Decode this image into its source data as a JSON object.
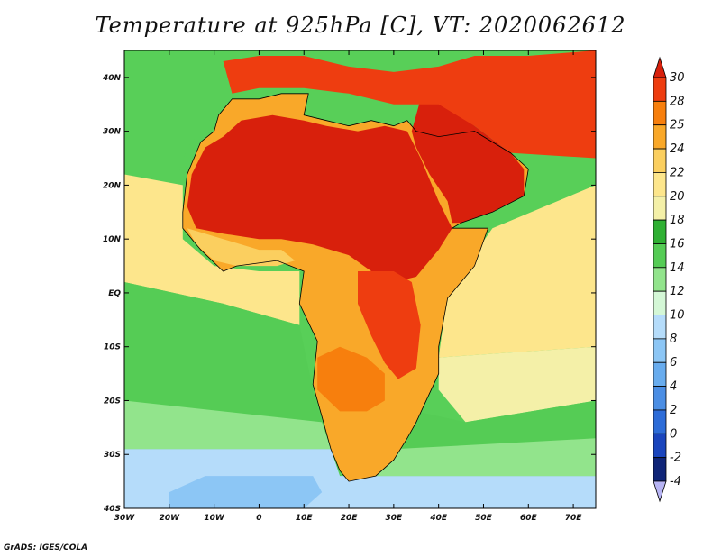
{
  "title": "Temperature at 925hPa [C], VT: 2020062612",
  "credit": "GrADS: IGES/COLA",
  "map": {
    "lon_range": [
      -30,
      75
    ],
    "lat_range": [
      -40,
      45
    ],
    "lon_ticks": [
      {
        "value": -30,
        "label": "30W"
      },
      {
        "value": -20,
        "label": "20W"
      },
      {
        "value": -10,
        "label": "10W"
      },
      {
        "value": 0,
        "label": "0"
      },
      {
        "value": 10,
        "label": "10E"
      },
      {
        "value": 20,
        "label": "20E"
      },
      {
        "value": 30,
        "label": "30E"
      },
      {
        "value": 40,
        "label": "40E"
      },
      {
        "value": 50,
        "label": "50E"
      },
      {
        "value": 60,
        "label": "60E"
      },
      {
        "value": 70,
        "label": "70E"
      }
    ],
    "lat_ticks": [
      {
        "value": 40,
        "label": "40N"
      },
      {
        "value": 30,
        "label": "30N"
      },
      {
        "value": 20,
        "label": "20N"
      },
      {
        "value": 10,
        "label": "10N"
      },
      {
        "value": 0,
        "label": "EQ"
      },
      {
        "value": -10,
        "label": "10S"
      },
      {
        "value": -20,
        "label": "20S"
      },
      {
        "value": -30,
        "label": "30S"
      },
      {
        "value": -40,
        "label": "40S"
      }
    ]
  },
  "colorbar": {
    "levels": [
      "30",
      "28",
      "25",
      "24",
      "22",
      "20",
      "18",
      "16",
      "14",
      "12",
      "10",
      "8",
      "6",
      "4",
      "2",
      "0",
      "-2",
      "-4"
    ],
    "colors": [
      "#d8200c",
      "#ee3d10",
      "#f77f0d",
      "#f9a829",
      "#fbcf5f",
      "#fde68c",
      "#f4f0a8",
      "#2fb033",
      "#55cc55",
      "#92e48c",
      "#d4f7d6",
      "#b5dcfa",
      "#8cc6f5",
      "#68acee",
      "#4b8ee4",
      "#2d6cd8",
      "#1a45bd",
      "#0f2578",
      "#b7b4f4"
    ]
  },
  "regions": [
    {
      "name": "north-atlantic",
      "color": "#58cf58",
      "poly": [
        [
          -30,
          45
        ],
        [
          -6,
          45
        ],
        [
          -6,
          36
        ],
        [
          -10,
          33
        ],
        [
          -16,
          27
        ],
        [
          -18,
          22
        ],
        [
          -30,
          22
        ]
      ]
    },
    {
      "name": "south-atlantic-warm",
      "color": "#fde68c",
      "poly": [
        [
          -30,
          22
        ],
        [
          -17,
          20
        ],
        [
          -17,
          10
        ],
        [
          -10,
          5
        ],
        [
          0,
          4
        ],
        [
          9,
          4
        ],
        [
          9,
          -6
        ],
        [
          -8,
          -2
        ],
        [
          -30,
          2
        ]
      ]
    },
    {
      "name": "south-atlantic-mid",
      "color": "#55cc55",
      "poly": [
        [
          -30,
          2
        ],
        [
          -8,
          -2
        ],
        [
          9,
          -6
        ],
        [
          12,
          -18
        ],
        [
          14,
          -24
        ],
        [
          -30,
          -20
        ]
      ]
    },
    {
      "name": "south-atlantic-cool",
      "color": "#92e48c",
      "poly": [
        [
          -30,
          -20
        ],
        [
          14,
          -24
        ],
        [
          16,
          -29
        ],
        [
          -30,
          -29
        ]
      ]
    },
    {
      "name": "south-atlantic-cold",
      "color": "#b5dcfa",
      "poly": [
        [
          -30,
          -29
        ],
        [
          16,
          -29
        ],
        [
          18,
          -34
        ],
        [
          75,
          -34
        ],
        [
          75,
          -40
        ],
        [
          -30,
          -40
        ]
      ]
    },
    {
      "name": "south-atlantic-colder",
      "color": "#8cc6f5",
      "poly": [
        [
          -12,
          -34
        ],
        [
          12,
          -34
        ],
        [
          14,
          -37
        ],
        [
          10,
          -40
        ],
        [
          -20,
          -40
        ],
        [
          -20,
          -37
        ]
      ]
    },
    {
      "name": "indian-ocean-warm",
      "color": "#fde68c",
      "poly": [
        [
          52,
          12
        ],
        [
          75,
          20
        ],
        [
          75,
          -10
        ],
        [
          40,
          -12
        ],
        [
          42,
          0
        ]
      ]
    },
    {
      "name": "indian-ocean-mid",
      "color": "#f4f0a8",
      "poly": [
        [
          40,
          -12
        ],
        [
          75,
          -10
        ],
        [
          75,
          -20
        ],
        [
          46,
          -24
        ],
        [
          40,
          -18
        ]
      ]
    },
    {
      "name": "indian-ocean-green",
      "color": "#55cc55",
      "poly": [
        [
          35,
          -22
        ],
        [
          46,
          -24
        ],
        [
          75,
          -20
        ],
        [
          75,
          -27
        ],
        [
          32,
          -29
        ]
      ]
    },
    {
      "name": "indian-ocean-cool",
      "color": "#92e48c",
      "poly": [
        [
          30,
          -29
        ],
        [
          75,
          -27
        ],
        [
          75,
          -34
        ],
        [
          24,
          -34
        ]
      ]
    },
    {
      "name": "africa-land",
      "color": "#f9a829",
      "poly": [
        [
          -17,
          15
        ],
        [
          -16,
          22
        ],
        [
          -13,
          28
        ],
        [
          -10,
          30
        ],
        [
          -9,
          33
        ],
        [
          -6,
          36
        ],
        [
          0,
          36
        ],
        [
          5,
          37
        ],
        [
          11,
          37
        ],
        [
          10,
          33
        ],
        [
          15,
          32
        ],
        [
          20,
          31
        ],
        [
          25,
          32
        ],
        [
          30,
          31
        ],
        [
          33,
          32
        ],
        [
          35,
          30
        ],
        [
          40,
          29
        ],
        [
          48,
          30
        ],
        [
          56,
          26
        ],
        [
          60,
          23
        ],
        [
          59,
          18
        ],
        [
          52,
          15
        ],
        [
          45,
          13
        ],
        [
          43,
          12
        ],
        [
          51,
          12
        ],
        [
          48,
          5
        ],
        [
          42,
          -1
        ],
        [
          40,
          -10
        ],
        [
          40,
          -15
        ],
        [
          35,
          -24
        ],
        [
          33,
          -27
        ],
        [
          30,
          -31
        ],
        [
          26,
          -34
        ],
        [
          20,
          -35
        ],
        [
          18,
          -33
        ],
        [
          16,
          -29
        ],
        [
          14,
          -23
        ],
        [
          12,
          -17
        ],
        [
          13,
          -9
        ],
        [
          9,
          -2
        ],
        [
          10,
          4
        ],
        [
          4,
          6
        ],
        [
          -5,
          5
        ],
        [
          -8,
          4
        ],
        [
          -13,
          8
        ],
        [
          -17,
          12
        ]
      ]
    },
    {
      "name": "arabia-land",
      "color": "#d8200c",
      "poly": [
        [
          34,
          30
        ],
        [
          36,
          36
        ],
        [
          40,
          37
        ],
        [
          48,
          31
        ],
        [
          56,
          26
        ],
        [
          59,
          23
        ],
        [
          59,
          18
        ],
        [
          52,
          15
        ],
        [
          45,
          13
        ],
        [
          43,
          13
        ],
        [
          42,
          17
        ],
        [
          38,
          22
        ],
        [
          35,
          27
        ]
      ]
    },
    {
      "name": "sahara-hot",
      "color": "#d8200c",
      "poly": [
        [
          -16,
          16
        ],
        [
          -15,
          22
        ],
        [
          -12,
          27
        ],
        [
          -8,
          29
        ],
        [
          -4,
          32
        ],
        [
          3,
          33
        ],
        [
          10,
          32
        ],
        [
          15,
          31
        ],
        [
          22,
          30
        ],
        [
          28,
          31
        ],
        [
          33,
          30
        ],
        [
          36,
          25
        ],
        [
          40,
          17
        ],
        [
          43,
          12
        ],
        [
          40,
          8
        ],
        [
          35,
          3
        ],
        [
          30,
          2
        ],
        [
          25,
          4
        ],
        [
          20,
          7
        ],
        [
          12,
          9
        ],
        [
          5,
          10
        ],
        [
          0,
          10
        ],
        [
          -8,
          11
        ],
        [
          -14,
          12
        ]
      ]
    },
    {
      "name": "med-north-hot",
      "color": "#ee3d10",
      "poly": [
        [
          -8,
          43
        ],
        [
          0,
          44
        ],
        [
          10,
          44
        ],
        [
          20,
          42
        ],
        [
          30,
          41
        ],
        [
          40,
          42
        ],
        [
          48,
          44
        ],
        [
          60,
          44
        ],
        [
          75,
          45
        ],
        [
          75,
          25
        ],
        [
          56,
          26
        ],
        [
          48,
          31
        ],
        [
          40,
          35
        ],
        [
          30,
          35
        ],
        [
          20,
          37
        ],
        [
          10,
          38
        ],
        [
          0,
          38
        ],
        [
          -6,
          37
        ]
      ]
    },
    {
      "name": "east-africa-hot",
      "color": "#ee3d10",
      "poly": [
        [
          22,
          4
        ],
        [
          30,
          4
        ],
        [
          34,
          2
        ],
        [
          36,
          -6
        ],
        [
          35,
          -14
        ],
        [
          31,
          -16
        ],
        [
          28,
          -13
        ],
        [
          25,
          -8
        ],
        [
          22,
          -2
        ]
      ]
    },
    {
      "name": "south-central-hot",
      "color": "#f77f0d",
      "poly": [
        [
          13,
          -12
        ],
        [
          18,
          -10
        ],
        [
          24,
          -12
        ],
        [
          28,
          -15
        ],
        [
          28,
          -20
        ],
        [
          24,
          -22
        ],
        [
          18,
          -22
        ],
        [
          13,
          -18
        ]
      ]
    },
    {
      "name": "west-coast-warm",
      "color": "#fbcf5f",
      "poly": [
        [
          -16,
          12
        ],
        [
          -8,
          10
        ],
        [
          0,
          8
        ],
        [
          5,
          8
        ],
        [
          8,
          6
        ],
        [
          4,
          5
        ],
        [
          -5,
          5
        ],
        [
          -10,
          6
        ],
        [
          -14,
          9
        ]
      ]
    }
  ]
}
